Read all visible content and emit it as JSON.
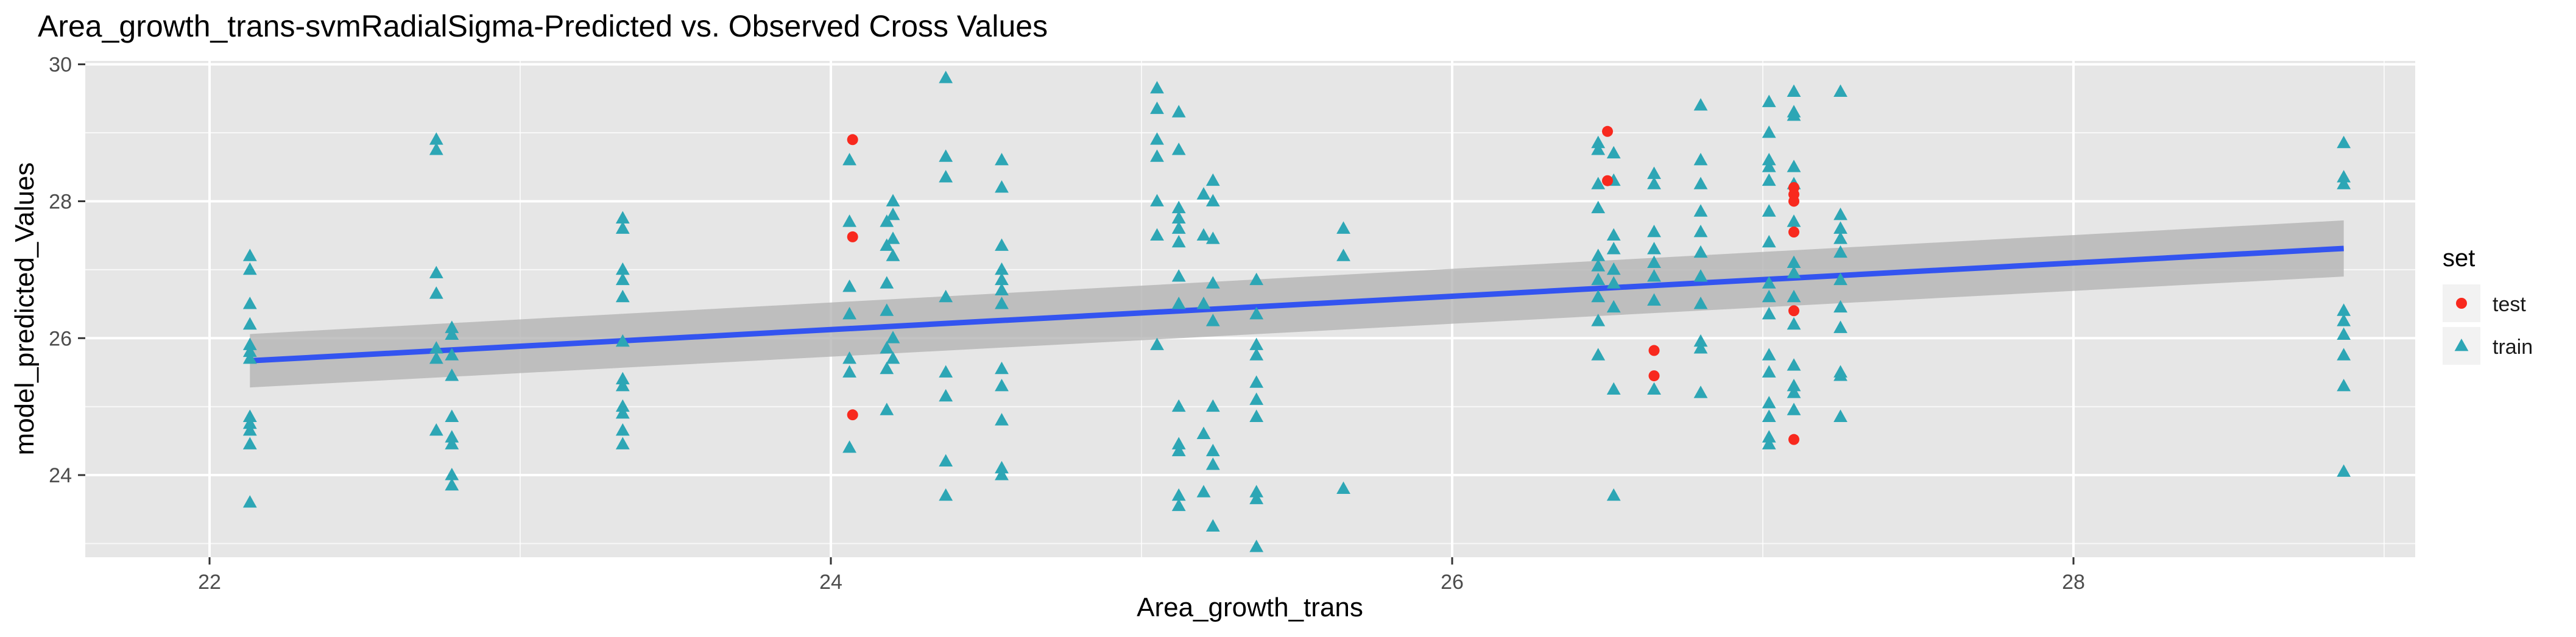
{
  "chart_data": {
    "type": "scatter",
    "title": "Area_growth_trans-svmRadialSigma-Predicted vs. Observed Cross Values",
    "xlabel": "Area_growth_trans",
    "ylabel": "model_predicted_Values",
    "xlim": [
      21.6,
      29.1
    ],
    "ylim": [
      22.8,
      30.05
    ],
    "x_ticks": [
      22,
      24,
      26,
      28
    ],
    "y_ticks": [
      24,
      26,
      28,
      30
    ],
    "grid": true,
    "legend": {
      "title": "set",
      "position": "right",
      "entries": [
        "test",
        "train"
      ]
    },
    "colors": {
      "test": "#F8291E",
      "train": "#2DA6B5",
      "fit": "#3354F0",
      "ribbon": "#B0B0B0",
      "panel": "#E6E6E6",
      "grid": "#FFFFFF"
    },
    "fit": {
      "x": [
        22.13,
        28.87
      ],
      "y": [
        25.67,
        27.31
      ],
      "ribbon_lower": [
        25.28,
        26.9
      ],
      "ribbon_upper": [
        26.06,
        27.72
      ]
    },
    "series": [
      {
        "name": "train",
        "marker": "triangle",
        "points": [
          [
            22.13,
            27.2
          ],
          [
            22.13,
            27.0
          ],
          [
            22.13,
            26.5
          ],
          [
            22.13,
            26.2
          ],
          [
            22.13,
            25.9
          ],
          [
            22.13,
            25.8
          ],
          [
            22.13,
            25.7
          ],
          [
            22.13,
            24.85
          ],
          [
            22.13,
            24.75
          ],
          [
            22.13,
            24.65
          ],
          [
            22.13,
            24.45
          ],
          [
            22.13,
            23.6
          ],
          [
            22.73,
            28.9
          ],
          [
            22.73,
            28.75
          ],
          [
            22.73,
            26.95
          ],
          [
            22.73,
            26.65
          ],
          [
            22.73,
            25.85
          ],
          [
            22.73,
            25.7
          ],
          [
            22.73,
            24.65
          ],
          [
            22.78,
            26.15
          ],
          [
            22.78,
            26.05
          ],
          [
            22.78,
            25.75
          ],
          [
            22.78,
            25.45
          ],
          [
            22.78,
            24.85
          ],
          [
            22.78,
            24.55
          ],
          [
            22.78,
            24.45
          ],
          [
            22.78,
            24.0
          ],
          [
            22.78,
            23.85
          ],
          [
            23.33,
            27.75
          ],
          [
            23.33,
            27.6
          ],
          [
            23.33,
            27.0
          ],
          [
            23.33,
            26.85
          ],
          [
            23.33,
            26.6
          ],
          [
            23.33,
            25.95
          ],
          [
            23.33,
            25.4
          ],
          [
            23.33,
            25.3
          ],
          [
            23.33,
            25.0
          ],
          [
            23.33,
            24.9
          ],
          [
            23.33,
            24.65
          ],
          [
            23.33,
            24.45
          ],
          [
            24.06,
            27.7
          ],
          [
            24.06,
            28.6
          ],
          [
            24.06,
            26.75
          ],
          [
            24.06,
            26.35
          ],
          [
            24.06,
            25.7
          ],
          [
            24.06,
            25.5
          ],
          [
            24.06,
            24.4
          ],
          [
            24.18,
            27.7
          ],
          [
            24.18,
            27.35
          ],
          [
            24.18,
            26.8
          ],
          [
            24.18,
            26.4
          ],
          [
            24.18,
            25.85
          ],
          [
            24.18,
            25.55
          ],
          [
            24.18,
            24.95
          ],
          [
            24.2,
            28.0
          ],
          [
            24.2,
            27.8
          ],
          [
            24.2,
            27.45
          ],
          [
            24.2,
            27.2
          ],
          [
            24.2,
            26.0
          ],
          [
            24.2,
            25.7
          ],
          [
            24.37,
            29.8
          ],
          [
            24.37,
            28.65
          ],
          [
            24.37,
            28.35
          ],
          [
            24.37,
            26.6
          ],
          [
            24.37,
            25.5
          ],
          [
            24.37,
            25.15
          ],
          [
            24.37,
            24.2
          ],
          [
            24.37,
            23.7
          ],
          [
            24.55,
            28.6
          ],
          [
            24.55,
            28.2
          ],
          [
            24.55,
            27.35
          ],
          [
            24.55,
            27.0
          ],
          [
            24.55,
            26.85
          ],
          [
            24.55,
            26.7
          ],
          [
            24.55,
            26.5
          ],
          [
            24.55,
            25.55
          ],
          [
            24.55,
            25.3
          ],
          [
            24.55,
            24.8
          ],
          [
            24.55,
            24.1
          ],
          [
            24.55,
            24.0
          ],
          [
            25.05,
            29.65
          ],
          [
            25.05,
            29.35
          ],
          [
            25.05,
            28.9
          ],
          [
            25.05,
            28.65
          ],
          [
            25.05,
            28.0
          ],
          [
            25.05,
            27.5
          ],
          [
            25.05,
            25.9
          ],
          [
            25.12,
            29.3
          ],
          [
            25.12,
            28.75
          ],
          [
            25.12,
            27.9
          ],
          [
            25.12,
            27.75
          ],
          [
            25.12,
            27.6
          ],
          [
            25.12,
            27.4
          ],
          [
            25.12,
            26.9
          ],
          [
            25.12,
            26.5
          ],
          [
            25.12,
            25.0
          ],
          [
            25.12,
            24.45
          ],
          [
            25.12,
            24.35
          ],
          [
            25.12,
            23.7
          ],
          [
            25.12,
            23.55
          ],
          [
            25.2,
            28.1
          ],
          [
            25.2,
            27.5
          ],
          [
            25.2,
            26.5
          ],
          [
            25.2,
            24.6
          ],
          [
            25.2,
            23.75
          ],
          [
            25.23,
            28.3
          ],
          [
            25.23,
            28.0
          ],
          [
            25.23,
            27.45
          ],
          [
            25.23,
            26.8
          ],
          [
            25.23,
            26.25
          ],
          [
            25.23,
            25.0
          ],
          [
            25.23,
            24.35
          ],
          [
            25.23,
            24.15
          ],
          [
            25.23,
            23.25
          ],
          [
            25.37,
            26.85
          ],
          [
            25.37,
            26.35
          ],
          [
            25.37,
            25.9
          ],
          [
            25.37,
            25.75
          ],
          [
            25.37,
            25.35
          ],
          [
            25.37,
            25.1
          ],
          [
            25.37,
            24.85
          ],
          [
            25.37,
            23.75
          ],
          [
            25.37,
            23.65
          ],
          [
            25.37,
            22.95
          ],
          [
            25.65,
            27.6
          ],
          [
            25.65,
            27.2
          ],
          [
            25.65,
            23.8
          ],
          [
            26.47,
            28.85
          ],
          [
            26.47,
            28.75
          ],
          [
            26.47,
            28.25
          ],
          [
            26.47,
            27.9
          ],
          [
            26.47,
            27.2
          ],
          [
            26.47,
            27.05
          ],
          [
            26.47,
            26.85
          ],
          [
            26.47,
            26.6
          ],
          [
            26.47,
            26.25
          ],
          [
            26.47,
            25.75
          ],
          [
            26.52,
            28.7
          ],
          [
            26.52,
            28.3
          ],
          [
            26.52,
            27.5
          ],
          [
            26.52,
            27.3
          ],
          [
            26.52,
            27.0
          ],
          [
            26.52,
            26.8
          ],
          [
            26.52,
            26.45
          ],
          [
            26.52,
            25.25
          ],
          [
            26.52,
            23.7
          ],
          [
            26.65,
            28.4
          ],
          [
            26.65,
            28.25
          ],
          [
            26.65,
            27.55
          ],
          [
            26.65,
            27.3
          ],
          [
            26.65,
            27.1
          ],
          [
            26.65,
            26.9
          ],
          [
            26.65,
            26.55
          ],
          [
            26.65,
            25.25
          ],
          [
            26.8,
            29.4
          ],
          [
            26.8,
            28.6
          ],
          [
            26.8,
            28.25
          ],
          [
            26.8,
            27.85
          ],
          [
            26.8,
            27.55
          ],
          [
            26.8,
            27.25
          ],
          [
            26.8,
            26.9
          ],
          [
            26.8,
            26.5
          ],
          [
            26.8,
            25.95
          ],
          [
            26.8,
            25.85
          ],
          [
            26.8,
            25.2
          ],
          [
            27.02,
            29.45
          ],
          [
            27.02,
            29.0
          ],
          [
            27.02,
            28.6
          ],
          [
            27.02,
            28.5
          ],
          [
            27.02,
            28.3
          ],
          [
            27.02,
            27.85
          ],
          [
            27.02,
            27.4
          ],
          [
            27.02,
            26.8
          ],
          [
            27.02,
            26.6
          ],
          [
            27.02,
            26.35
          ],
          [
            27.02,
            25.75
          ],
          [
            27.02,
            25.5
          ],
          [
            27.02,
            25.05
          ],
          [
            27.02,
            24.85
          ],
          [
            27.02,
            24.55
          ],
          [
            27.02,
            24.45
          ],
          [
            27.1,
            29.6
          ],
          [
            27.1,
            29.3
          ],
          [
            27.1,
            29.25
          ],
          [
            27.1,
            28.5
          ],
          [
            27.1,
            28.25
          ],
          [
            27.1,
            27.7
          ],
          [
            27.1,
            27.1
          ],
          [
            27.1,
            26.95
          ],
          [
            27.1,
            26.6
          ],
          [
            27.1,
            26.2
          ],
          [
            27.1,
            25.6
          ],
          [
            27.1,
            25.3
          ],
          [
            27.1,
            25.2
          ],
          [
            27.1,
            24.95
          ],
          [
            27.25,
            29.6
          ],
          [
            27.25,
            27.8
          ],
          [
            27.25,
            27.6
          ],
          [
            27.25,
            27.45
          ],
          [
            27.25,
            27.25
          ],
          [
            27.25,
            26.85
          ],
          [
            27.25,
            26.45
          ],
          [
            27.25,
            26.15
          ],
          [
            27.25,
            25.5
          ],
          [
            27.25,
            25.45
          ],
          [
            27.25,
            24.85
          ],
          [
            28.87,
            28.85
          ],
          [
            28.87,
            28.35
          ],
          [
            28.87,
            28.25
          ],
          [
            28.87,
            26.4
          ],
          [
            28.87,
            26.25
          ],
          [
            28.87,
            26.05
          ],
          [
            28.87,
            25.75
          ],
          [
            28.87,
            25.3
          ],
          [
            28.87,
            24.05
          ]
        ]
      },
      {
        "name": "test",
        "marker": "circle",
        "points": [
          [
            24.07,
            28.9
          ],
          [
            24.07,
            27.48
          ],
          [
            24.07,
            24.88
          ],
          [
            26.5,
            29.02
          ],
          [
            26.5,
            28.3
          ],
          [
            26.65,
            25.82
          ],
          [
            26.65,
            25.45
          ],
          [
            27.1,
            28.2
          ],
          [
            27.1,
            28.1
          ],
          [
            27.1,
            28.0
          ],
          [
            27.1,
            27.55
          ],
          [
            27.1,
            26.4
          ],
          [
            27.1,
            24.52
          ]
        ]
      }
    ]
  }
}
